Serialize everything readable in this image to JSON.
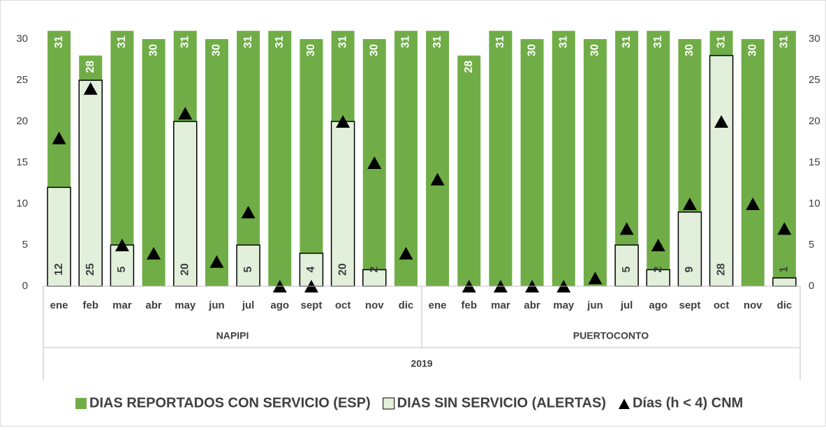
{
  "chart_data": {
    "type": "bar",
    "categories": [
      "ene",
      "feb",
      "mar",
      "abr",
      "may",
      "jun",
      "jul",
      "ago",
      "sept",
      "oct",
      "nov",
      "dic",
      "ene",
      "feb",
      "mar",
      "abr",
      "may",
      "jun",
      "jul",
      "ago",
      "sept",
      "oct",
      "nov",
      "dic"
    ],
    "groups": [
      "NAPIPI",
      "PUERTOCONTO"
    ],
    "year": "2019",
    "series": [
      {
        "name": "DIAS REPORTADOS CON SERVICIO (ESP)",
        "color": "#70ad47",
        "values": [
          31,
          28,
          31,
          30,
          31,
          30,
          31,
          31,
          30,
          31,
          30,
          31,
          31,
          28,
          31,
          30,
          31,
          30,
          31,
          31,
          30,
          31,
          30,
          31
        ]
      },
      {
        "name": "DIAS SIN SERVICIO (ALERTAS)",
        "color": "#e2efda",
        "values": [
          12,
          25,
          5,
          null,
          20,
          null,
          5,
          null,
          4,
          20,
          2,
          null,
          null,
          null,
          null,
          null,
          null,
          null,
          5,
          2,
          9,
          28,
          null,
          1
        ]
      },
      {
        "name": "Días (h < 4) CNM",
        "color": "#000000",
        "axis": "y2",
        "values": [
          18,
          24,
          5,
          4,
          21,
          3,
          9,
          0,
          0,
          20,
          15,
          4,
          13,
          0,
          0,
          0,
          0,
          1,
          7,
          5,
          10,
          20,
          10,
          7
        ]
      }
    ],
    "ylim": [
      0,
      30
    ],
    "yticks": [
      0,
      5,
      10,
      15,
      20,
      25,
      30
    ],
    "y2lim": [
      0,
      30
    ],
    "y2ticks": [
      0,
      5,
      10,
      15,
      20,
      25,
      30
    ],
    "grid": false,
    "legend": "bottom"
  }
}
